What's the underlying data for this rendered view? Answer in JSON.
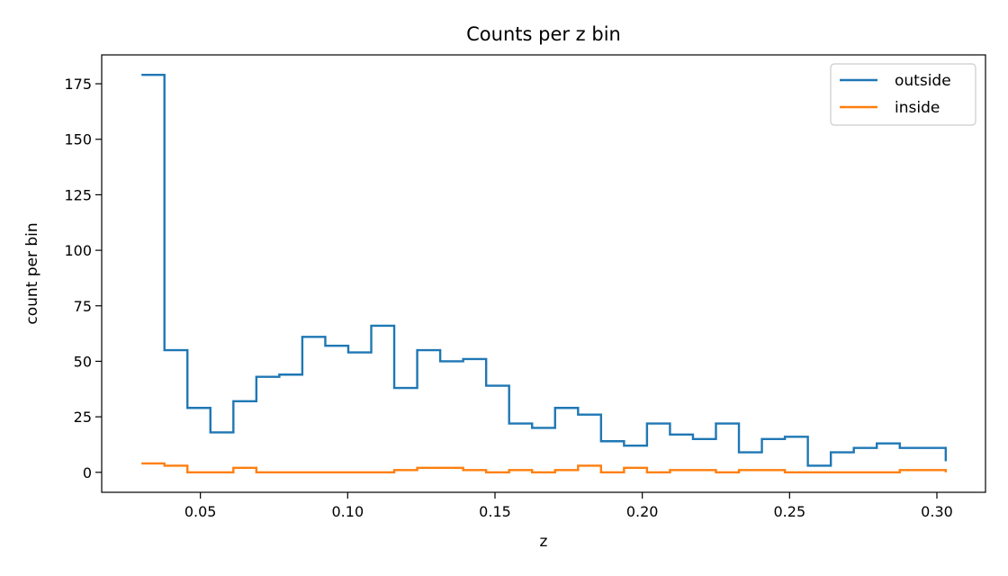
{
  "chart_data": {
    "type": "line",
    "drawstyle": "steps",
    "title": "Counts per z bin",
    "xlabel": "z",
    "ylabel": "count per bin",
    "xlim": [
      0.0165,
      0.3165
    ],
    "ylim": [
      -9,
      188
    ],
    "xticks": [
      {
        "value": 0.05,
        "label": "0.05"
      },
      {
        "value": 0.1,
        "label": "0.10"
      },
      {
        "value": 0.15,
        "label": "0.15"
      },
      {
        "value": 0.2,
        "label": "0.20"
      },
      {
        "value": 0.25,
        "label": "0.25"
      },
      {
        "value": 0.3,
        "label": "0.30"
      }
    ],
    "yticks": [
      {
        "value": 0,
        "label": "0"
      },
      {
        "value": 25,
        "label": "25"
      },
      {
        "value": 50,
        "label": "50"
      },
      {
        "value": 75,
        "label": "75"
      },
      {
        "value": 100,
        "label": "100"
      },
      {
        "value": 125,
        "label": "125"
      },
      {
        "value": 150,
        "label": "150"
      },
      {
        "value": 175,
        "label": "175"
      }
    ],
    "bin_edges": [
      0.03,
      0.0378,
      0.0456,
      0.0534,
      0.0612,
      0.069,
      0.0768,
      0.0846,
      0.0924,
      0.1002,
      0.108,
      0.1158,
      0.1236,
      0.1314,
      0.1392,
      0.147,
      0.1548,
      0.1626,
      0.1704,
      0.1782,
      0.186,
      0.1938,
      0.2016,
      0.2094,
      0.2172,
      0.225,
      0.2328,
      0.2406,
      0.2484,
      0.2562,
      0.264,
      0.2718,
      0.2796,
      0.2874,
      0.2952,
      0.303
    ],
    "series": [
      {
        "name": "outside",
        "color": "#1f77b4",
        "values": [
          179,
          55,
          29,
          18,
          32,
          43,
          44,
          61,
          57,
          54,
          66,
          38,
          55,
          50,
          51,
          39,
          22,
          20,
          29,
          26,
          14,
          12,
          22,
          17,
          15,
          22,
          9,
          15,
          16,
          3,
          9,
          11,
          13,
          11,
          11
        ],
        "end_value": 5
      },
      {
        "name": "inside",
        "color": "#ff7f0e",
        "values": [
          4,
          3,
          0,
          0,
          2,
          0,
          0,
          0,
          0,
          0,
          0,
          1,
          2,
          2,
          1,
          0,
          1,
          0,
          1,
          3,
          0,
          2,
          0,
          1,
          1,
          0,
          1,
          1,
          0,
          0,
          0,
          0,
          0,
          1,
          1
        ],
        "end_value": 0
      }
    ],
    "grid": false,
    "legend_position": "top-right"
  }
}
